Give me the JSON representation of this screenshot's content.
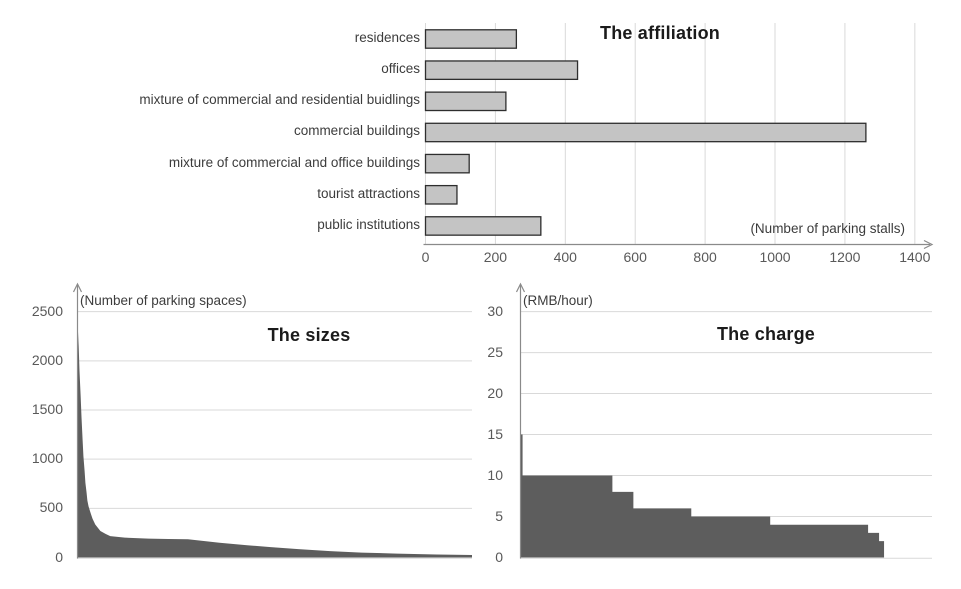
{
  "figure": {
    "description": "Three charts describing parking lots: affiliation, sizes and charge"
  },
  "colors": {
    "background": "#ffffff",
    "bar_fill": "#c4c4c4",
    "bar_border": "#2e2e2e",
    "dark_fill": "#5d5d5d",
    "gridline": "#d9d9d9",
    "axis": "#8a8a8a",
    "tick_text": "#595959",
    "label_text": "#3c3c3c",
    "title_text": "#1b1b1b"
  },
  "chart_data": [
    {
      "id": "affiliation",
      "type": "bar",
      "orientation": "horizontal",
      "title": "The affiliation",
      "x_axis_note": "(Number of parking stalls)",
      "categories": [
        "residences",
        "offices",
        "mixture of commercial and residential buidlings",
        "commercial buildings",
        "mixture of commercial and office buildings",
        "tourist attractions",
        "public institutions"
      ],
      "values": [
        260,
        435,
        230,
        1260,
        125,
        90,
        330
      ],
      "xticks": [
        0,
        200,
        400,
        600,
        800,
        1000,
        1200,
        1400
      ],
      "xlim": [
        0,
        1452
      ],
      "grid": "vertical",
      "legend": "none"
    },
    {
      "id": "sizes",
      "type": "area",
      "title": "The sizes",
      "y_axis_note": "(Number of parking spaces)",
      "yticks": [
        0,
        500,
        1000,
        1500,
        2000,
        2500
      ],
      "ylim": [
        0,
        2700
      ],
      "grid": "horizontal",
      "legend": "none",
      "points": [
        {
          "x": 0.0,
          "y": 2400
        },
        {
          "x": 0.003,
          "y": 2150
        },
        {
          "x": 0.005,
          "y": 1900
        },
        {
          "x": 0.008,
          "y": 1640
        },
        {
          "x": 0.01,
          "y": 1440
        },
        {
          "x": 0.013,
          "y": 1190
        },
        {
          "x": 0.015,
          "y": 1030
        },
        {
          "x": 0.018,
          "y": 880
        },
        {
          "x": 0.02,
          "y": 760
        },
        {
          "x": 0.023,
          "y": 660
        },
        {
          "x": 0.025,
          "y": 580
        },
        {
          "x": 0.028,
          "y": 520
        },
        {
          "x": 0.033,
          "y": 455
        },
        {
          "x": 0.038,
          "y": 395
        },
        {
          "x": 0.045,
          "y": 335
        },
        {
          "x": 0.058,
          "y": 270
        },
        {
          "x": 0.071,
          "y": 240
        },
        {
          "x": 0.083,
          "y": 218
        },
        {
          "x": 0.12,
          "y": 202
        },
        {
          "x": 0.18,
          "y": 192
        },
        {
          "x": 0.23,
          "y": 188
        },
        {
          "x": 0.28,
          "y": 185
        },
        {
          "x": 0.32,
          "y": 168
        },
        {
          "x": 0.36,
          "y": 150
        },
        {
          "x": 0.43,
          "y": 125
        },
        {
          "x": 0.49,
          "y": 105
        },
        {
          "x": 0.56,
          "y": 85
        },
        {
          "x": 0.64,
          "y": 65
        },
        {
          "x": 0.72,
          "y": 50
        },
        {
          "x": 0.81,
          "y": 40
        },
        {
          "x": 0.91,
          "y": 30
        },
        {
          "x": 1.0,
          "y": 25
        }
      ]
    },
    {
      "id": "charge",
      "type": "step-area",
      "title": "The charge",
      "y_axis_note": "(RMB/hour)",
      "yticks": [
        0,
        5,
        10,
        15,
        20,
        25,
        30
      ],
      "ylim": [
        0,
        33
      ],
      "grid": "horizontal",
      "legend": "none",
      "segments": [
        {
          "value": 15,
          "from": 0.0,
          "to": 0.005
        },
        {
          "value": 10,
          "from": 0.005,
          "to": 0.2233
        },
        {
          "value": 8,
          "from": 0.2233,
          "to": 0.2743
        },
        {
          "value": 6,
          "from": 0.2743,
          "to": 0.415
        },
        {
          "value": 5,
          "from": 0.415,
          "to": 0.6068
        },
        {
          "value": 4,
          "from": 0.6068,
          "to": 0.8447
        },
        {
          "value": 3,
          "from": 0.8447,
          "to": 0.8714
        },
        {
          "value": 2,
          "from": 0.8714,
          "to": 0.8835
        }
      ]
    }
  ]
}
